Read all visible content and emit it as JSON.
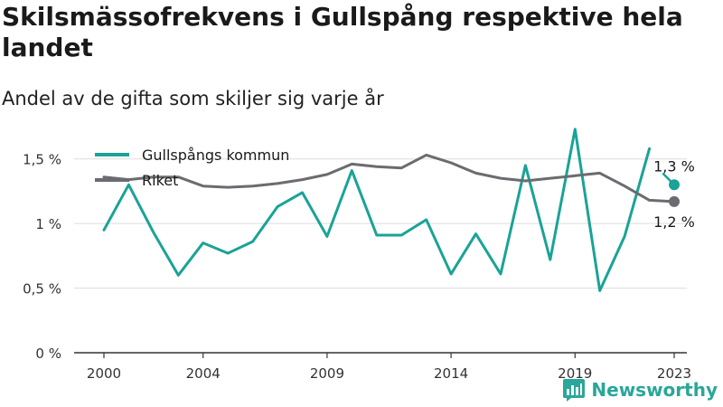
{
  "title": "Skilsmässofrekvens i Gullspång respektive hela landet",
  "subtitle": "Andel av de gifta som skiljer sig varje år",
  "brand": {
    "name": "Newsworthy",
    "icon": "newsworthy-logo-icon",
    "color": "#2aa69a"
  },
  "chart_data": {
    "type": "line",
    "x": [
      2000,
      2001,
      2002,
      2003,
      2004,
      2005,
      2006,
      2007,
      2008,
      2009,
      2010,
      2011,
      2012,
      2013,
      2014,
      2015,
      2016,
      2017,
      2018,
      2019,
      2020,
      2021,
      2022,
      2023
    ],
    "xticks": [
      2000,
      2004,
      2009,
      2014,
      2019,
      2023
    ],
    "xtick_labels": [
      "2000",
      "2004",
      "2009",
      "2014",
      "2019",
      "2023"
    ],
    "ylim": [
      0,
      1.75
    ],
    "yticks": [
      0,
      0.5,
      1,
      1.5
    ],
    "ytick_labels": [
      "0 %",
      "0,5 %",
      "1 %",
      "1,5 %"
    ],
    "grid": "horizontal",
    "legend": "top-left",
    "series": [
      {
        "name": "Gullspångs kommun",
        "color": "#1aa396",
        "values": [
          0.95,
          1.3,
          0.93,
          0.6,
          0.85,
          0.77,
          0.86,
          1.13,
          1.24,
          0.9,
          1.41,
          0.91,
          0.91,
          1.03,
          0.61,
          0.92,
          0.61,
          1.45,
          0.72,
          1.73,
          0.48,
          0.9,
          1.58,
          1.3
        ],
        "end_label": "1,3 %",
        "break_before_last": true
      },
      {
        "name": "Riket",
        "color": "#6b6b70",
        "values": [
          1.36,
          1.34,
          1.36,
          1.36,
          1.29,
          1.28,
          1.29,
          1.31,
          1.34,
          1.38,
          1.46,
          1.44,
          1.43,
          1.53,
          1.47,
          1.39,
          1.35,
          1.33,
          1.35,
          1.37,
          1.39,
          1.29,
          1.18,
          1.17
        ],
        "end_label": "1,2 %",
        "break_before_last": false
      }
    ]
  }
}
